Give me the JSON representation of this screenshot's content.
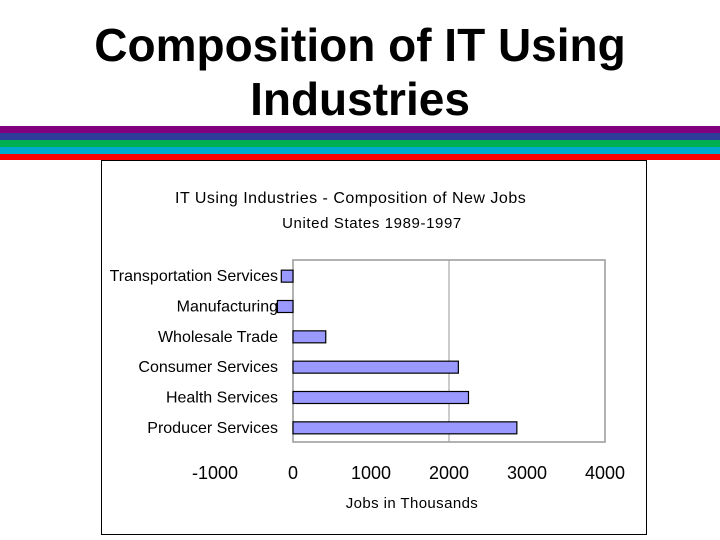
{
  "slide": {
    "title_line1": "Composition of IT Using",
    "title_line2": "Industries",
    "stripe_colors": [
      "#800080",
      "#2e3b9a",
      "#00b050",
      "#00aacc",
      "#ff0000"
    ]
  },
  "chart_data": {
    "type": "bar",
    "orientation": "horizontal",
    "title": "IT Using Industries - Composition of New Jobs",
    "subtitle": "United States 1989-1997",
    "xlabel": "Jobs in Thousands",
    "ylabel": "",
    "xlim": [
      -1000,
      4000
    ],
    "xticks": [
      "-1000",
      "0",
      "1000",
      "2000",
      "3000",
      "4000"
    ],
    "tick_values": [
      -1000,
      0,
      1000,
      2000,
      3000,
      4000
    ],
    "categories": [
      "Transportation Services",
      "Manufacturing",
      "Wholesale Trade",
      "Consumer Services",
      "Health Services",
      "Producer Services"
    ],
    "values": [
      -150,
      -200,
      420,
      2120,
      2250,
      2870
    ],
    "bar_color": "#9999ff",
    "grid": "vertical line at 2000",
    "legend": "none"
  }
}
